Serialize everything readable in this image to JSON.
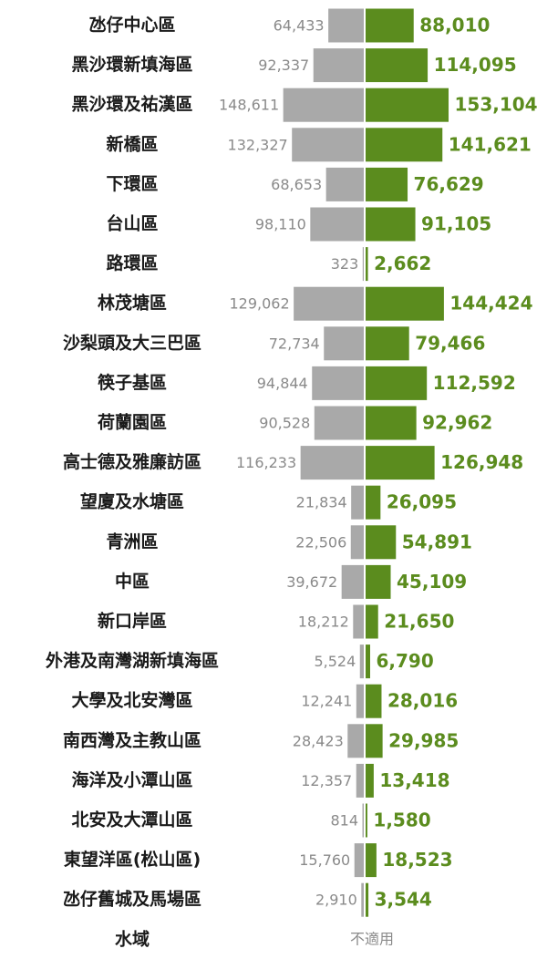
{
  "chart_data": {
    "type": "diverging-bar",
    "categories": [
      "氹仔中心區",
      "黑沙環新填海區",
      "黑沙環及祐漢區",
      "新橋區",
      "下環區",
      "台山區",
      "路環區",
      "林茂塘區",
      "沙梨頭及大三巴區",
      "筷子基區",
      "荷蘭園區",
      "高士德及雅廉訪區",
      "望廈及水塘區",
      "青洲區",
      "中區",
      "新口岸區",
      "外港及南灣湖新填海區",
      "大學及北安灣區",
      "南西灣及主教山區",
      "海洋及小潭山區",
      "北安及大潭山區",
      "東望洋區(松山區)",
      "氹仔舊城及馬場區",
      "水域"
    ],
    "series": [
      {
        "color": "#a9a9a9",
        "side": "left",
        "values": [
          64433,
          92337,
          148611,
          132327,
          68653,
          98110,
          323,
          129062,
          72734,
          94844,
          90528,
          116233,
          21834,
          22506,
          39672,
          18212,
          5524,
          12241,
          28423,
          12357,
          814,
          15760,
          2910,
          null
        ],
        "value_labels": [
          "64,433",
          "92,337",
          "148,611",
          "132,327",
          "68,653",
          "98,110",
          "323",
          "129,062",
          "72,734",
          "94,844",
          "90,528",
          "116,233",
          "21,834",
          "22,506",
          "39,672",
          "18,212",
          "5,524",
          "12,241",
          "28,423",
          "12,357",
          "814",
          "15,760",
          "2,910",
          null
        ]
      },
      {
        "color": "#5b8c1e",
        "side": "right",
        "values": [
          88010,
          114095,
          153104,
          141621,
          76629,
          91105,
          2662,
          144424,
          79466,
          112592,
          92962,
          126948,
          26095,
          54891,
          45109,
          21650,
          6790,
          28016,
          29985,
          13418,
          1580,
          18523,
          3544,
          null
        ],
        "value_labels": [
          "88,010",
          "114,095",
          "153,104",
          "141,621",
          "76,629",
          "91,105",
          "2,662",
          "144,424",
          "79,466",
          "112,592",
          "92,962",
          "126,948",
          "26,095",
          "54,891",
          "45,109",
          "21,650",
          "6,790",
          "28,016",
          "29,985",
          "13,418",
          "1,580",
          "18,523",
          "3,544",
          null
        ]
      }
    ],
    "missing_label": "不適用"
  }
}
